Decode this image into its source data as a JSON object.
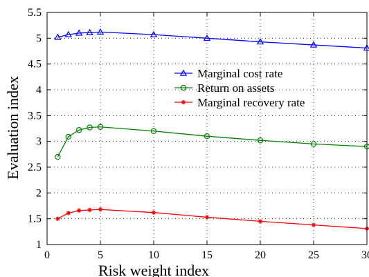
{
  "chart_data": {
    "type": "line",
    "xlabel": "Risk weight index",
    "ylabel": "Evaluation index",
    "xlim": [
      0,
      30
    ],
    "ylim": [
      1,
      5.5
    ],
    "xticks": [
      0,
      5,
      10,
      15,
      20,
      25,
      30
    ],
    "xtick_labels": [
      "0",
      "5",
      "10",
      "15",
      "20",
      "25",
      "30"
    ],
    "yticks": [
      1,
      1.5,
      2,
      2.5,
      3,
      3.5,
      4,
      4.5,
      5,
      5.5
    ],
    "ytick_labels": [
      "1",
      "1.5",
      "2",
      "2.5",
      "3",
      "3.5",
      "4",
      "4.5",
      "5",
      "5.5"
    ],
    "grid": true,
    "grid_style": "dotted",
    "legend_position": "center-right",
    "x": [
      1,
      2,
      3,
      4,
      5,
      10,
      15,
      20,
      25,
      30
    ],
    "series": [
      {
        "name": "Marginal cost rate",
        "color": "#0000ff",
        "marker": "triangle",
        "values": [
          5.02,
          5.07,
          5.1,
          5.11,
          5.12,
          5.07,
          5.0,
          4.93,
          4.87,
          4.81
        ]
      },
      {
        "name": "Return on assets",
        "color": "#008000",
        "marker": "circle",
        "values": [
          2.7,
          3.09,
          3.22,
          3.27,
          3.28,
          3.2,
          3.1,
          3.02,
          2.95,
          2.9
        ]
      },
      {
        "name": "Marginal recovery rate",
        "color": "#ff0000",
        "marker": "star",
        "values": [
          1.5,
          1.61,
          1.66,
          1.67,
          1.68,
          1.62,
          1.53,
          1.45,
          1.38,
          1.31
        ]
      }
    ]
  }
}
